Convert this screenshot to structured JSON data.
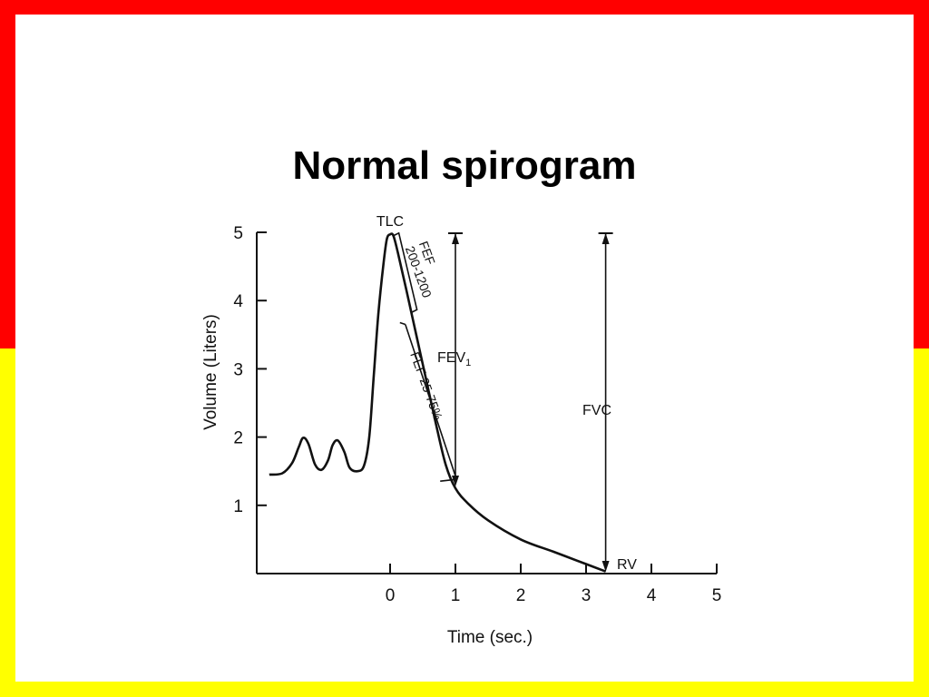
{
  "slide": {
    "title": "Normal spirogram",
    "colors": {
      "top_band": "#ff0000",
      "bottom_band": "#ffff00",
      "panel": "#ffffff",
      "ink": "#111111"
    }
  },
  "chart_data": {
    "type": "line",
    "xlabel": "Time (sec.)",
    "ylabel": "Volume (Liters)",
    "xlim": [
      -2,
      5
    ],
    "ylim": [
      0,
      5
    ],
    "x_ticks": [
      0,
      1,
      2,
      3,
      4,
      5
    ],
    "y_ticks": [
      1,
      2,
      3,
      4,
      5
    ],
    "grid": false,
    "series": [
      {
        "name": "",
        "points": [
          [
            -1.85,
            1.45
          ],
          [
            -1.65,
            1.47
          ],
          [
            -1.5,
            1.62
          ],
          [
            -1.4,
            1.85
          ],
          [
            -1.33,
            1.99
          ],
          [
            -1.25,
            1.9
          ],
          [
            -1.15,
            1.6
          ],
          [
            -1.05,
            1.52
          ],
          [
            -0.95,
            1.66
          ],
          [
            -0.88,
            1.88
          ],
          [
            -0.8,
            1.95
          ],
          [
            -0.7,
            1.78
          ],
          [
            -0.62,
            1.55
          ],
          [
            -0.5,
            1.5
          ],
          [
            -0.4,
            1.58
          ],
          [
            -0.32,
            2.0
          ],
          [
            -0.25,
            2.9
          ],
          [
            -0.18,
            3.8
          ],
          [
            -0.1,
            4.55
          ],
          [
            -0.05,
            4.9
          ],
          [
            0.0,
            4.97
          ],
          [
            0.05,
            4.95
          ],
          [
            0.12,
            4.7
          ],
          [
            0.25,
            4.15
          ],
          [
            0.4,
            3.5
          ],
          [
            0.55,
            2.85
          ],
          [
            0.7,
            2.2
          ],
          [
            0.85,
            1.6
          ],
          [
            1.0,
            1.25
          ],
          [
            1.2,
            1.02
          ],
          [
            1.5,
            0.78
          ],
          [
            2.0,
            0.5
          ],
          [
            2.5,
            0.32
          ],
          [
            3.0,
            0.14
          ],
          [
            3.3,
            0.03
          ]
        ]
      }
    ],
    "annotations": {
      "tlc": "TLC",
      "rv": "RV",
      "fev1": "FEV",
      "fev1_subscript": "1",
      "fvc": "FVC",
      "fef_200_1200_line1": "FEF",
      "fef_200_1200_line2": "200-1200",
      "fef_25_75": "FEF 25-75%"
    }
  }
}
